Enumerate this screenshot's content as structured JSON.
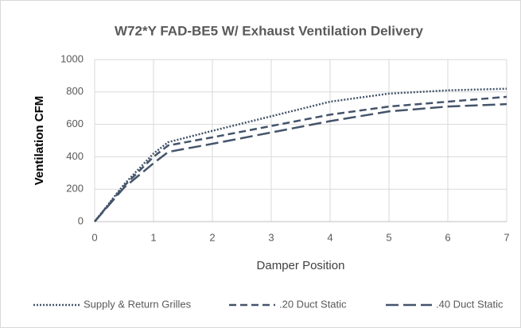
{
  "chart_data": {
    "type": "line",
    "title": "W72*Y FAD-BE5 W/ Exhaust Ventilation Delivery",
    "x_label": "Damper Position",
    "y_label": "Ventilation CFM",
    "x": [
      0,
      0.5,
      1,
      1.25,
      2,
      3,
      4,
      5,
      6,
      7
    ],
    "series": [
      {
        "name": "Supply & Return Grilles",
        "color": "#44546a",
        "dash": "dotted",
        "values": [
          0,
          230,
          420,
          490,
          560,
          650,
          740,
          790,
          810,
          820
        ]
      },
      {
        "name": ".20 Duct Static",
        "color": "#44546a",
        "dash": "dashed",
        "values": [
          0,
          220,
          400,
          470,
          520,
          590,
          660,
          710,
          740,
          770
        ]
      },
      {
        "name": ".40 Duct Static",
        "color": "#44546a",
        "dash": "longdash",
        "values": [
          0,
          210,
          360,
          430,
          480,
          550,
          620,
          680,
          710,
          725
        ]
      }
    ],
    "xlim": [
      0,
      7
    ],
    "xticks": [
      0,
      1,
      2,
      3,
      4,
      5,
      6,
      7
    ],
    "ylim": [
      0,
      1000
    ],
    "yticks": [
      0,
      200,
      400,
      600,
      800,
      1000
    ],
    "grid": true,
    "legend": "bottom"
  }
}
